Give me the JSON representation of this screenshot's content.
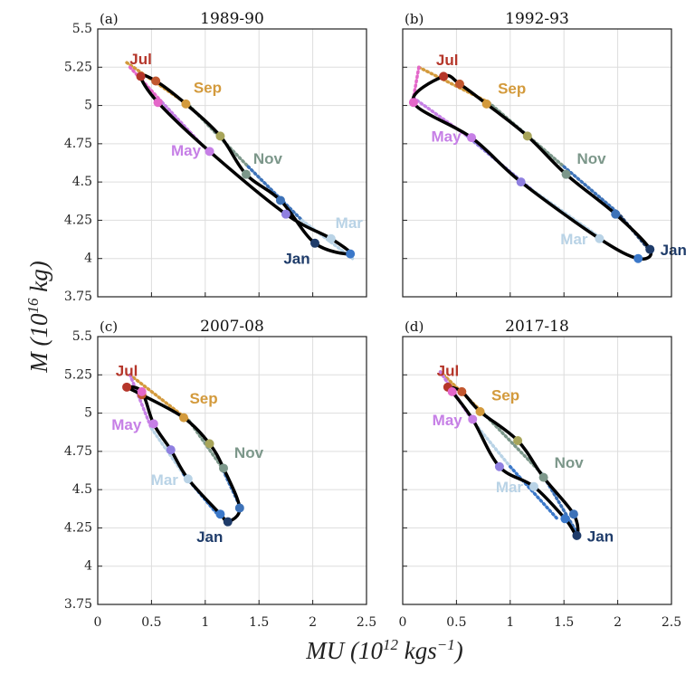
{
  "y_label": [
    "M (10",
    "16",
    " kg)"
  ],
  "x_label": [
    "MU (10",
    "12",
    " kgs",
    "−1",
    ")"
  ],
  "chart_data": [
    {
      "type": "line",
      "panel_label": "(a)",
      "title": "1989-90",
      "xlim": [
        0,
        2.5
      ],
      "ylim": [
        3.75,
        5.5
      ],
      "xticks": [
        0,
        0.5,
        1,
        1.5,
        2,
        2.5
      ],
      "yticks": [
        3.75,
        4,
        4.25,
        4.5,
        4.75,
        5,
        5.25,
        5.5
      ],
      "grid": true,
      "series": [
        {
          "x": [
            0.4,
            0.54,
            0.82,
            1.14,
            1.38,
            1.7,
            2.02,
            2.35,
            2.17,
            1.75,
            1.04,
            0.56
          ],
          "y": [
            5.19,
            5.16,
            5.01,
            4.8,
            4.55,
            4.38,
            4.1,
            4.03,
            4.13,
            4.29,
            4.7,
            5.02
          ],
          "colors": [
            "#b5362a",
            "#c2572f",
            "#d39a3c",
            "#a8a55a",
            "#7c978a",
            "#3d72b8",
            "#1f3c6a",
            "#3b78c9",
            "#b9d3e6",
            "#8f7fe0",
            "#c67fe6",
            "#e467c9"
          ],
          "labels": [
            "Jul",
            null,
            "Sep",
            null,
            "Nov",
            null,
            "Jan",
            null,
            "Mar",
            null,
            "May",
            null
          ]
        }
      ],
      "dotted": [
        {
          "x": [
            0.27,
            0.85,
            1.4,
            1.9,
            2.37
          ],
          "y": [
            5.28,
            5.0,
            4.6,
            4.25,
            4.0
          ],
          "colors": [
            "#d39a3c",
            "#7c978a",
            "#3d72b8",
            "#b9d3e6"
          ]
        },
        {
          "x": [
            0.3,
            0.6,
            1.0
          ],
          "y": [
            5.25,
            5.02,
            4.72
          ],
          "colors": [
            "#e467c9",
            "#c67fe6"
          ]
        }
      ]
    },
    {
      "type": "line",
      "panel_label": "(b)",
      "title": "1992-93",
      "xlim": [
        0,
        2.5
      ],
      "ylim": [
        3.75,
        5.5
      ],
      "xticks": [
        0,
        0.5,
        1,
        1.5,
        2,
        2.5
      ],
      "yticks": [
        3.75,
        4,
        4.25,
        4.5,
        4.75,
        5,
        5.25,
        5.5
      ],
      "grid": true,
      "series": [
        {
          "x": [
            0.38,
            0.53,
            0.78,
            1.16,
            1.52,
            1.98,
            2.3,
            2.19,
            1.83,
            1.1,
            0.64,
            0.1
          ],
          "y": [
            5.19,
            5.14,
            5.01,
            4.8,
            4.55,
            4.29,
            4.06,
            4.0,
            4.13,
            4.5,
            4.79,
            5.02
          ],
          "colors": [
            "#b5362a",
            "#c2572f",
            "#d39a3c",
            "#a8a55a",
            "#7c978a",
            "#3d72b8",
            "#1f3c6a",
            "#3b78c9",
            "#b9d3e6",
            "#8f7fe0",
            "#c67fe6",
            "#e467c9"
          ],
          "labels": [
            "Jul",
            null,
            "Sep",
            null,
            "Nov",
            null,
            "Jan",
            null,
            "Mar",
            null,
            "May",
            null
          ]
        }
      ],
      "dotted": [
        {
          "x": [
            0.15,
            0.8,
            1.5,
            2.0,
            2.3
          ],
          "y": [
            5.25,
            5.02,
            4.6,
            4.3,
            4.05
          ],
          "colors": [
            "#d39a3c",
            "#7c978a",
            "#3d72b8",
            "#1f3c6a"
          ]
        },
        {
          "x": [
            0.15,
            0.1,
            0.6,
            1.2,
            1.85
          ],
          "y": [
            5.25,
            5.05,
            4.8,
            4.45,
            4.13
          ],
          "colors": [
            "#e467c9",
            "#c67fe6",
            "#8f7fe0",
            "#b9d3e6"
          ]
        }
      ]
    },
    {
      "type": "line",
      "panel_label": "(c)",
      "title": "2007-08",
      "xlim": [
        0,
        2.5
      ],
      "ylim": [
        3.75,
        5.5
      ],
      "xticks": [
        0,
        0.5,
        1,
        1.5,
        2,
        2.5
      ],
      "yticks": [
        3.75,
        4,
        4.25,
        4.5,
        4.75,
        5,
        5.25,
        5.5
      ],
      "grid": true,
      "series": [
        {
          "x": [
            0.27,
            0.41,
            0.8,
            1.04,
            1.17,
            1.32,
            1.21,
            1.14,
            0.84,
            0.68,
            0.52,
            0.41
          ],
          "y": [
            5.17,
            5.12,
            4.97,
            4.8,
            4.64,
            4.38,
            4.29,
            4.34,
            4.57,
            4.76,
            4.93,
            5.14
          ],
          "colors": [
            "#b5362a",
            "#c2572f",
            "#d39a3c",
            "#a8a55a",
            "#7c978a",
            "#3d72b8",
            "#1f3c6a",
            "#3b78c9",
            "#b9d3e6",
            "#8f7fe0",
            "#c67fe6",
            "#e467c9"
          ],
          "labels": [
            "Jul",
            null,
            "Sep",
            null,
            "Nov",
            null,
            "Jan",
            null,
            "Mar",
            null,
            "May",
            null
          ]
        }
      ],
      "dotted": [
        {
          "x": [
            0.3,
            0.85,
            1.15,
            1.33
          ],
          "y": [
            5.25,
            4.95,
            4.65,
            4.38
          ],
          "colors": [
            "#d39a3c",
            "#7c978a",
            "#3d72b8"
          ]
        },
        {
          "x": [
            0.3,
            0.5,
            0.8,
            1.1
          ],
          "y": [
            5.25,
            4.9,
            4.6,
            4.35
          ],
          "colors": [
            "#c67fe6",
            "#b9d3e6",
            "#3b78c9"
          ]
        }
      ]
    },
    {
      "type": "line",
      "panel_label": "(d)",
      "title": "2017-18",
      "xlim": [
        0,
        2.5
      ],
      "ylim": [
        3.75,
        5.5
      ],
      "xticks": [
        0,
        0.5,
        1,
        1.5,
        2,
        2.5
      ],
      "yticks": [
        3.75,
        4,
        4.25,
        4.5,
        4.75,
        5,
        5.25,
        5.5
      ],
      "grid": true,
      "series": [
        {
          "x": [
            0.42,
            0.55,
            0.72,
            1.07,
            1.31,
            1.59,
            1.62,
            1.51,
            1.22,
            0.9,
            0.65,
            0.46
          ],
          "y": [
            5.17,
            5.14,
            5.01,
            4.82,
            4.58,
            4.34,
            4.2,
            4.31,
            4.52,
            4.65,
            4.96,
            5.14
          ],
          "colors": [
            "#b5362a",
            "#c2572f",
            "#d39a3c",
            "#a8a55a",
            "#7c978a",
            "#3d72b8",
            "#1f3c6a",
            "#3b78c9",
            "#b9d3e6",
            "#8f7fe0",
            "#c67fe6",
            "#e467c9"
          ],
          "labels": [
            "Jul",
            null,
            "Sep",
            null,
            "Nov",
            null,
            "Jan",
            null,
            "Mar",
            null,
            "May",
            null
          ]
        }
      ],
      "dotted": [
        {
          "x": [
            0.35,
            0.75,
            1.3,
            1.62
          ],
          "y": [
            5.27,
            5.0,
            4.6,
            4.22
          ],
          "colors": [
            "#d39a3c",
            "#7c978a",
            "#3d72b8"
          ]
        },
        {
          "x": [
            0.35,
            0.65,
            1.0,
            1.45
          ],
          "y": [
            5.27,
            4.95,
            4.65,
            4.3
          ],
          "colors": [
            "#c67fe6",
            "#b9d3e6",
            "#3b78c9"
          ]
        }
      ]
    }
  ]
}
